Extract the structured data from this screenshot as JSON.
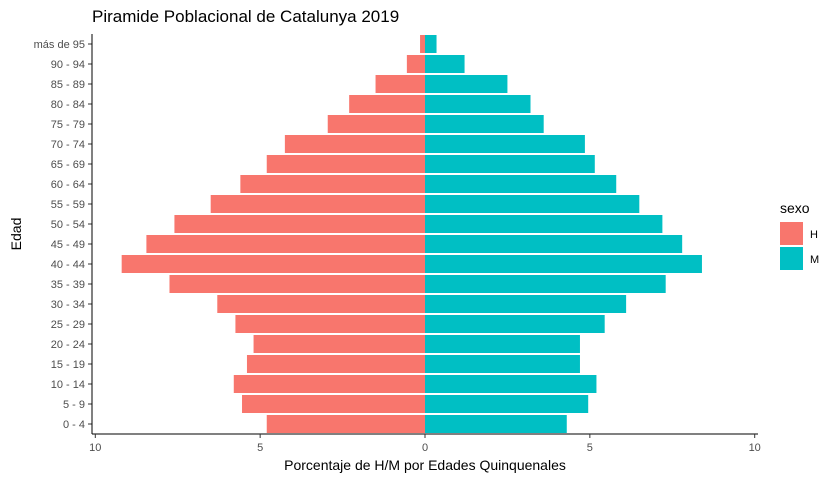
{
  "chart_data": {
    "type": "bar",
    "orientation": "horizontal",
    "title": "Piramide Poblacional de Catalunya 2019",
    "xlabel": "Porcentaje de H/M por Edades Quinquenales",
    "ylabel": "Edad",
    "x_ticks": [
      {
        "value": -10,
        "label": "10"
      },
      {
        "value": -5,
        "label": "5"
      },
      {
        "value": 0,
        "label": "0"
      },
      {
        "value": 5,
        "label": "5"
      },
      {
        "value": 10,
        "label": "10"
      }
    ],
    "xlim": [
      -10.1,
      10.1
    ],
    "grid": false,
    "legend_position": "right",
    "legend_title": "sexo",
    "categories": [
      "0 - 4",
      "5 - 9",
      "10 - 14",
      "15 - 19",
      "20 - 24",
      "25 - 29",
      "30 - 34",
      "35 - 39",
      "40 - 44",
      "45 - 49",
      "50 - 54",
      "55 - 59",
      "60 - 64",
      "65 - 69",
      "70 - 74",
      "75 - 79",
      "80 - 84",
      "85 - 89",
      "90 - 94",
      "más de 95"
    ],
    "series": [
      {
        "name": "H",
        "color": "#F8766D",
        "values": [
          4.8,
          5.55,
          5.8,
          5.4,
          5.2,
          5.75,
          6.3,
          7.75,
          9.2,
          8.45,
          7.6,
          6.5,
          5.6,
          4.8,
          4.25,
          2.95,
          2.3,
          1.5,
          0.55,
          0.15
        ]
      },
      {
        "name": "M",
        "color": "#00BFC4",
        "values": [
          4.3,
          4.95,
          5.2,
          4.7,
          4.7,
          5.45,
          6.1,
          7.3,
          8.4,
          7.8,
          7.2,
          6.5,
          5.8,
          5.15,
          4.85,
          3.6,
          3.2,
          2.5,
          1.2,
          0.35
        ]
      }
    ]
  }
}
